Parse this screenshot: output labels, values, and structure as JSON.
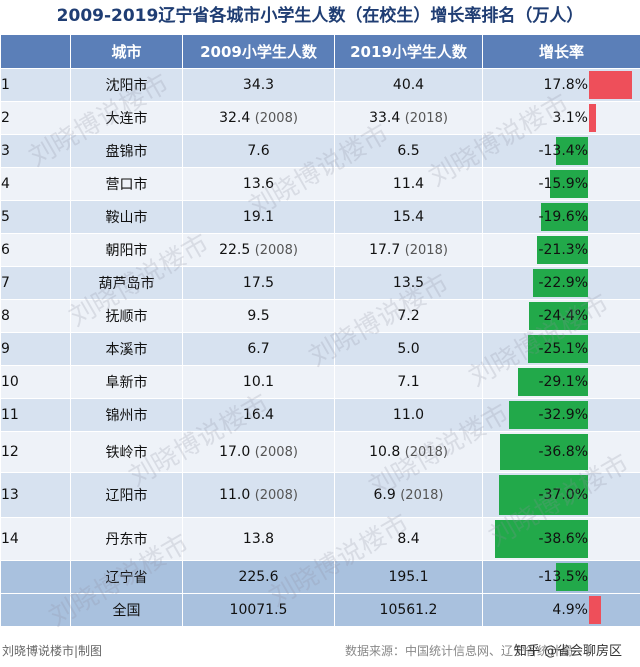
{
  "title": "2009-2019辽宁省各城市小学生人数（在校生）增长率排名（万人）",
  "headers": [
    "",
    "城市",
    "2009小学生人数",
    "2019小学生人数",
    "增长率"
  ],
  "rows": [
    {
      "rank": "1",
      "city": "沈阳市",
      "v2009": "34.3",
      "y2009": "",
      "v2019": "40.4",
      "y2019": "",
      "rate": "17.8%",
      "rate_value": 17.8
    },
    {
      "rank": "2",
      "city": "大连市",
      "v2009": "32.4",
      "y2009": "(2008)",
      "v2019": "33.4",
      "y2019": "(2018)",
      "rate": "3.1%",
      "rate_value": 3.1
    },
    {
      "rank": "3",
      "city": "盘锦市",
      "v2009": "7.6",
      "y2009": "",
      "v2019": "6.5",
      "y2019": "",
      "rate": "-13.4%",
      "rate_value": -13.4
    },
    {
      "rank": "4",
      "city": "营口市",
      "v2009": "13.6",
      "y2009": "",
      "v2019": "11.4",
      "y2019": "",
      "rate": "-15.9%",
      "rate_value": -15.9
    },
    {
      "rank": "5",
      "city": "鞍山市",
      "v2009": "19.1",
      "y2009": "",
      "v2019": "15.4",
      "y2019": "",
      "rate": "-19.6%",
      "rate_value": -19.6
    },
    {
      "rank": "6",
      "city": "朝阳市",
      "v2009": "22.5",
      "y2009": "(2008)",
      "v2019": "17.7",
      "y2019": "(2018)",
      "rate": "-21.3%",
      "rate_value": -21.3
    },
    {
      "rank": "7",
      "city": "葫芦岛市",
      "v2009": "17.5",
      "y2009": "",
      "v2019": "13.5",
      "y2019": "",
      "rate": "-22.9%",
      "rate_value": -22.9
    },
    {
      "rank": "8",
      "city": "抚顺市",
      "v2009": "9.5",
      "y2009": "",
      "v2019": "7.2",
      "y2019": "",
      "rate": "-24.4%",
      "rate_value": -24.4
    },
    {
      "rank": "9",
      "city": "本溪市",
      "v2009": "6.7",
      "y2009": "",
      "v2019": "5.0",
      "y2019": "",
      "rate": "-25.1%",
      "rate_value": -25.1
    },
    {
      "rank": "10",
      "city": "阜新市",
      "v2009": "10.1",
      "y2009": "",
      "v2019": "7.1",
      "y2019": "",
      "rate": "-29.1%",
      "rate_value": -29.1
    },
    {
      "rank": "11",
      "city": "锦州市",
      "v2009": "16.4",
      "y2009": "",
      "v2019": "11.0",
      "y2019": "",
      "rate": "-32.9%",
      "rate_value": -32.9
    },
    {
      "rank": "12",
      "city": "铁岭市",
      "v2009": "17.0",
      "y2009": "(2008)",
      "v2019": "10.8",
      "y2019": "(2018)",
      "rate": "-36.8%",
      "rate_value": -36.8
    },
    {
      "rank": "13",
      "city": "辽阳市",
      "v2009": "11.0",
      "y2009": "(2008)",
      "v2019": "6.9",
      "y2019": "(2018)",
      "rate": "-37.0%",
      "rate_value": -37.0
    },
    {
      "rank": "14",
      "city": "丹东市",
      "v2009": "13.8",
      "y2009": "",
      "v2019": "8.4",
      "y2019": "",
      "rate": "-38.6%",
      "rate_value": -38.6
    }
  ],
  "summary": [
    {
      "rank": "",
      "city": "辽宁省",
      "v2009": "225.6",
      "y2009": "",
      "v2019": "195.1",
      "y2019": "",
      "rate": "-13.5%",
      "rate_value": -13.5
    },
    {
      "rank": "",
      "city": "全国",
      "v2009": "10071.5",
      "y2009": "",
      "v2019": "10561.2",
      "y2019": "",
      "rate": "4.9%",
      "rate_value": 4.9
    }
  ],
  "watermark": "刘晓博说楼市",
  "footer": {
    "left": "刘晓博说楼市|制图",
    "source": "数据来源：中国统计信息网、辽宁省统计局",
    "credit": "知乎 @省会聊房区"
  },
  "colors": {
    "header": "#5b7fb8",
    "row_dark": "#d7e2f0",
    "row_light": "#eef2f8",
    "summary": "#a9c1de",
    "negative_bar": "#22a94a",
    "positive_bar": "#ee4f5a",
    "title": "#1f3d73"
  }
}
